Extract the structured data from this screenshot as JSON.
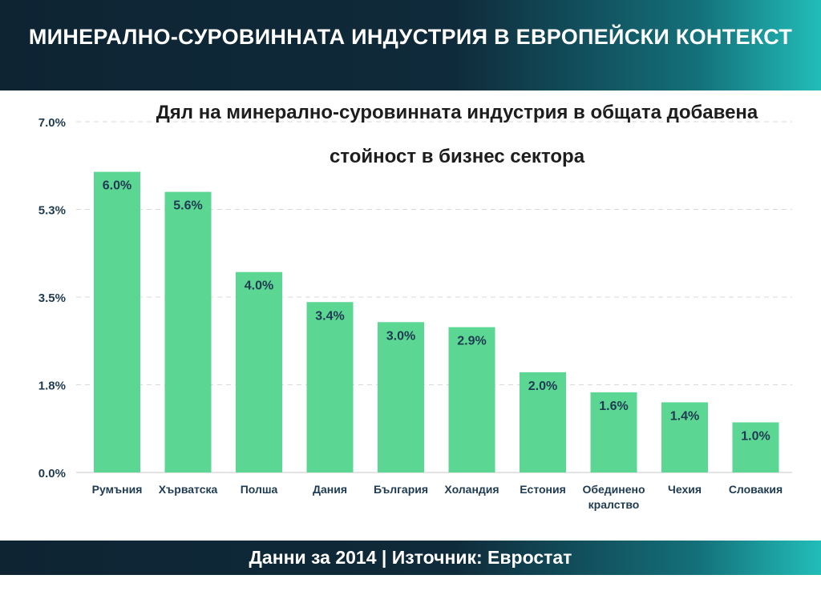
{
  "header": {
    "title": "МИНЕРАЛНО-СУРОВИННАТА ИНДУСТРИЯ В ЕВРОПЕЙСКИ КОНТЕКСТ"
  },
  "footer": {
    "text": "Данни за 2014 | Източник: Евростат"
  },
  "colors": {
    "bar": "#5cd693",
    "header_dark": "#0e2433",
    "header_accent": "#22bdb8",
    "value_label": "#1f3b52",
    "axis_label": "#1f3b52",
    "grid": "#d8d8d8"
  },
  "chart_data": {
    "type": "bar",
    "title": "Дял на минерално-суровинната индустрия в общата добавена стойност в бизнес сектора",
    "xlabel": "",
    "ylabel": "",
    "categories": [
      "Румъния",
      "Хърватска",
      "Полша",
      "Дания",
      "България",
      "Холандия",
      "Естония",
      "Обединено кралство",
      "Чехия",
      "Словакия"
    ],
    "values": [
      6.0,
      5.6,
      4.0,
      3.4,
      3.0,
      2.9,
      2.0,
      1.6,
      1.4,
      1.0
    ],
    "value_labels": [
      "6.0%",
      "5.6%",
      "4.0%",
      "3.4%",
      "3.0%",
      "2.9%",
      "2.0%",
      "1.6%",
      "1.4%",
      "1.0%"
    ],
    "yticks": [
      0,
      1.75,
      3.5,
      5.25,
      7.0
    ],
    "ytick_labels": [
      "0.0%",
      "1.8%",
      "3.5%",
      "5.3%",
      "7.0%"
    ],
    "ylim": [
      0,
      7.0
    ],
    "grid": true,
    "legend": "none"
  }
}
